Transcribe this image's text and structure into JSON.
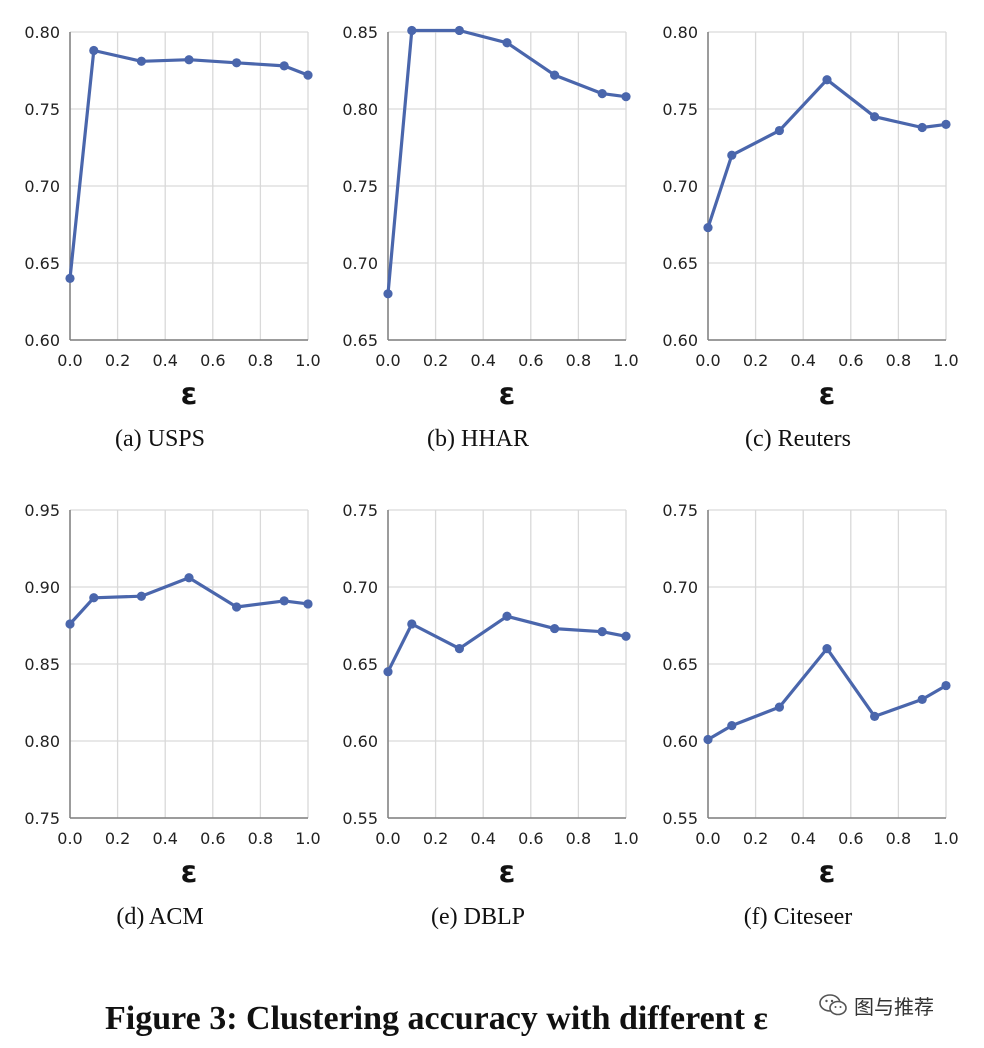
{
  "figure": {
    "title": "Figure 3: Clustering accuracy with different ε"
  },
  "watermark": {
    "text": "图与推荐",
    "icon": "wechat-icon"
  },
  "colors": {
    "line": "#4A66AC",
    "grid": "#D9D9D9",
    "axis": "#7F7F7F"
  },
  "chart_data": [
    {
      "type": "line",
      "caption": "(a)  USPS",
      "xlabel": "ε",
      "ylabel": "",
      "x": [
        0.0,
        0.1,
        0.3,
        0.5,
        0.7,
        0.9,
        1.0
      ],
      "values": [
        0.64,
        0.788,
        0.781,
        0.782,
        0.78,
        0.778,
        0.772
      ],
      "xlim": [
        0.0,
        1.0
      ],
      "ylim": [
        0.6,
        0.8
      ],
      "xticks": [
        "0.0",
        "0.2",
        "0.4",
        "0.6",
        "0.8",
        "1.0"
      ],
      "yticks": [
        "0.60",
        "0.65",
        "0.70",
        "0.75",
        "0.80"
      ],
      "grid": true
    },
    {
      "type": "line",
      "caption": "(b)  HHAR",
      "xlabel": "ε",
      "ylabel": "",
      "x": [
        0.0,
        0.1,
        0.3,
        0.5,
        0.7,
        0.9,
        1.0
      ],
      "values": [
        0.68,
        0.851,
        0.851,
        0.843,
        0.822,
        0.81,
        0.808
      ],
      "xlim": [
        0.0,
        1.0
      ],
      "ylim": [
        0.65,
        0.85
      ],
      "xticks": [
        "0.0",
        "0.2",
        "0.4",
        "0.6",
        "0.8",
        "1.0"
      ],
      "yticks": [
        "0.65",
        "0.70",
        "0.75",
        "0.80",
        "0.85"
      ],
      "grid": true
    },
    {
      "type": "line",
      "caption": "(c)  Reuters",
      "xlabel": "ε",
      "ylabel": "",
      "x": [
        0.0,
        0.1,
        0.3,
        0.5,
        0.7,
        0.9,
        1.0
      ],
      "values": [
        0.673,
        0.72,
        0.736,
        0.769,
        0.745,
        0.738,
        0.74
      ],
      "xlim": [
        0.0,
        1.0
      ],
      "ylim": [
        0.6,
        0.8
      ],
      "xticks": [
        "0.0",
        "0.2",
        "0.4",
        "0.6",
        "0.8",
        "1.0"
      ],
      "yticks": [
        "0.60",
        "0.65",
        "0.70",
        "0.75",
        "0.80"
      ],
      "grid": true
    },
    {
      "type": "line",
      "caption": "(d)  ACM",
      "xlabel": "ε",
      "ylabel": "",
      "x": [
        0.0,
        0.1,
        0.3,
        0.5,
        0.7,
        0.9,
        1.0
      ],
      "values": [
        0.876,
        0.893,
        0.894,
        0.906,
        0.887,
        0.891,
        0.889
      ],
      "xlim": [
        0.0,
        1.0
      ],
      "ylim": [
        0.75,
        0.95
      ],
      "xticks": [
        "0.0",
        "0.2",
        "0.4",
        "0.6",
        "0.8",
        "1.0"
      ],
      "yticks": [
        "0.75",
        "0.80",
        "0.85",
        "0.90",
        "0.95"
      ],
      "grid": true
    },
    {
      "type": "line",
      "caption": "(e)  DBLP",
      "xlabel": "ε",
      "ylabel": "",
      "x": [
        0.0,
        0.1,
        0.3,
        0.5,
        0.7,
        0.9,
        1.0
      ],
      "values": [
        0.645,
        0.676,
        0.66,
        0.681,
        0.673,
        0.671,
        0.668
      ],
      "xlim": [
        0.0,
        1.0
      ],
      "ylim": [
        0.55,
        0.75
      ],
      "xticks": [
        "0.0",
        "0.2",
        "0.4",
        "0.6",
        "0.8",
        "1.0"
      ],
      "yticks": [
        "0.55",
        "0.60",
        "0.65",
        "0.70",
        "0.75"
      ],
      "grid": true
    },
    {
      "type": "line",
      "caption": "(f)  Citeseer",
      "xlabel": "ε",
      "ylabel": "",
      "x": [
        0.0,
        0.1,
        0.3,
        0.5,
        0.7,
        0.9,
        1.0
      ],
      "values": [
        0.601,
        0.61,
        0.622,
        0.66,
        0.616,
        0.627,
        0.636
      ],
      "xlim": [
        0.0,
        1.0
      ],
      "ylim": [
        0.55,
        0.75
      ],
      "xticks": [
        "0.0",
        "0.2",
        "0.4",
        "0.6",
        "0.8",
        "1.0"
      ],
      "yticks": [
        "0.55",
        "0.60",
        "0.65",
        "0.70",
        "0.75"
      ],
      "grid": true
    }
  ]
}
